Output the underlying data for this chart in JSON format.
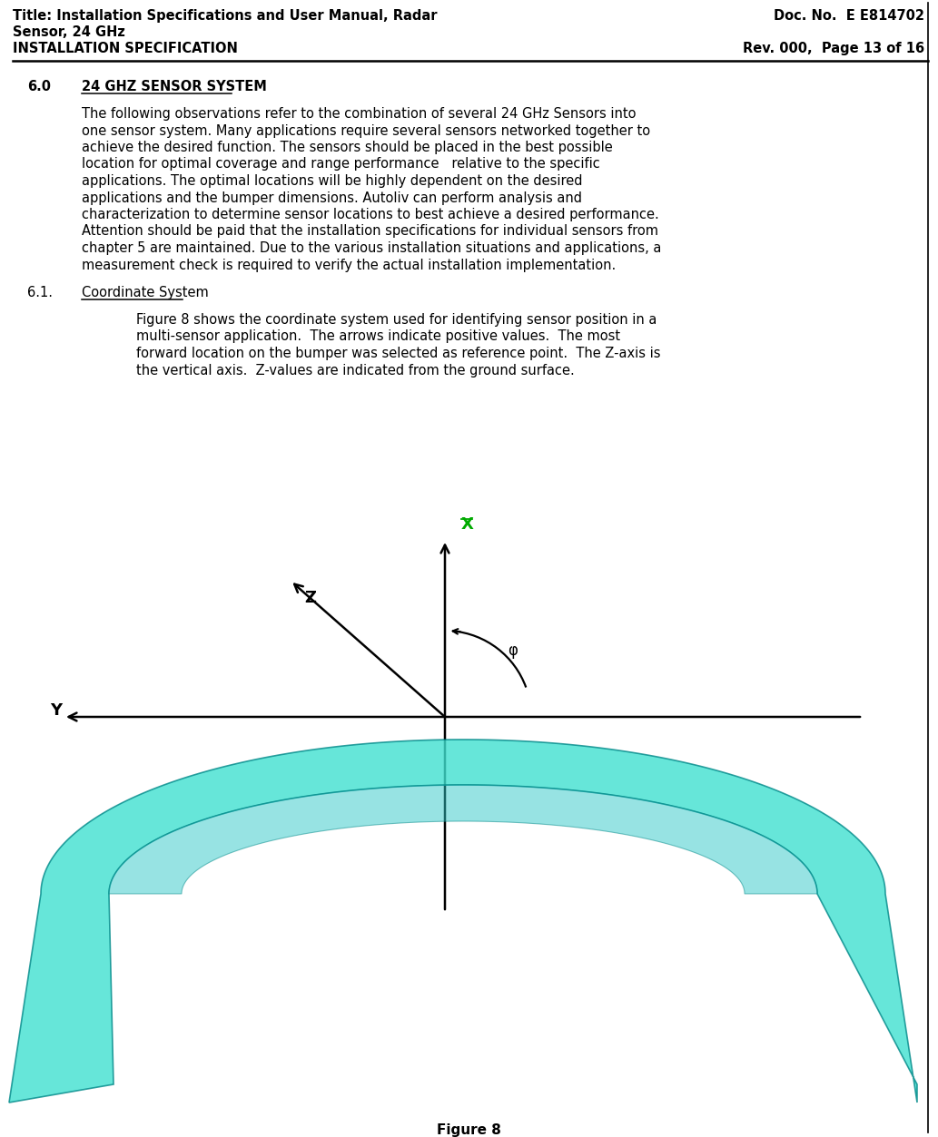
{
  "header_left_line1": "Title: Installation Specifications and User Manual, Radar",
  "header_left_line2": "Sensor, 24 GHz",
  "header_left_line3": "INSTALLATION SPECIFICATION",
  "header_right_line1": "Doc. No.  E E814702",
  "header_right_line3": "Rev. 000,  Page 13 of 16",
  "section_number": "6.0",
  "section_title": "24 GHZ SENSOR SYSTEM",
  "body_paragraph": "The following observations refer to the combination of several 24 GHz Sensors into one sensor system. Many applications require several sensors networked together to achieve the desired function. The sensors should be placed in the best possible location for optimal coverage and range performance   relative to the specific applications. The optimal locations will be highly dependent on the desired applications and the bumper dimensions. Autoliv can perform analysis and characterization to determine sensor locations to best achieve a desired performance. Attention should be paid that the installation specifications for individual sensors from chapter 5 are maintained. Due to the various installation situations and applications, a measurement check is required to verify the actual installation implementation.",
  "subsection_number": "6.1.",
  "subsection_title": "Coordinate System",
  "subsection_body": "Figure 8 shows the coordinate system used for identifying sensor position in a multi-sensor application.  The arrows indicate positive values.  The most forward location on the bumper was selected as reference point.  The Z-axis is the vertical axis.  Z-values are indicated from the ground surface.",
  "figure_caption": "Figure 8",
  "bg_color": "#ffffff",
  "text_color": "#000000",
  "header_font_size": 10.5,
  "body_font_size": 10.5,
  "axis_label_X_color": "#00aa00",
  "axis_label_Y_color": "#000000",
  "axis_label_Z_color": "#000000",
  "axis_label_phi_color": "#000000",
  "bumper_fill_color": "#40E0D0",
  "bumper_edge_color": "#008888"
}
